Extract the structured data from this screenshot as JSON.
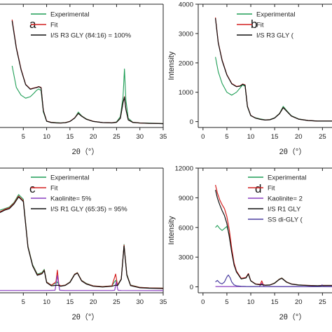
{
  "colors": {
    "experimental": "#1f9e56",
    "fit": "#d42020",
    "component": "#111111",
    "kaolinite": "#8a3fc0",
    "ss": "#4b3fa0",
    "axis": "#222222"
  },
  "chart_data": [
    {
      "id": "a",
      "type": "line",
      "panel_label": "a",
      "xlabel": "2θ（°）",
      "ylabel": "",
      "xlim": [
        0,
        35
      ],
      "ylim": [
        0,
        4000
      ],
      "xticks": [
        "5",
        "10",
        "15",
        "20",
        "25",
        "30",
        "35"
      ],
      "xtick_values": [
        5,
        10,
        15,
        20,
        25,
        30,
        35
      ],
      "yticks": [],
      "legend": [
        "Experimental",
        "Fit",
        "I/S R3 GLY (84:16) = 100%"
      ],
      "series": [
        {
          "name": "Experimental",
          "x": [
            2.6,
            3.5,
            4.5,
            5.5,
            6.5,
            7.2,
            7.8,
            8.3,
            8.8,
            9.3,
            10,
            11,
            12,
            13,
            14,
            15,
            16,
            16.8,
            17.5,
            18.5,
            20,
            22,
            24,
            25,
            25.8,
            26.4,
            26.7,
            27,
            27.5,
            28.5,
            30,
            32,
            34,
            35
          ],
          "y": [
            2000,
            1300,
            1050,
            950,
            1000,
            1100,
            1200,
            1250,
            1200,
            500,
            200,
            170,
            160,
            150,
            160,
            200,
            300,
            500,
            380,
            280,
            200,
            160,
            150,
            180,
            350,
            1000,
            1900,
            900,
            300,
            170,
            150,
            140,
            135,
            130
          ]
        },
        {
          "name": "Fit",
          "x": [
            2.6,
            3.5,
            4.5,
            5.5,
            6.5,
            7.2,
            7.8,
            8.3,
            8.8,
            9.3,
            10,
            11,
            12,
            13,
            14,
            15,
            16,
            16.8,
            17.5,
            18.5,
            20,
            22,
            24,
            25,
            25.8,
            26.4,
            26.7,
            27,
            27.5,
            28.5,
            30,
            32,
            34,
            35
          ],
          "y": [
            3500,
            2600,
            1900,
            1400,
            1250,
            1280,
            1300,
            1330,
            1300,
            550,
            210,
            165,
            150,
            145,
            155,
            200,
            310,
            460,
            370,
            270,
            200,
            160,
            150,
            170,
            300,
            820,
            1000,
            600,
            250,
            165,
            145,
            135,
            130,
            125
          ]
        },
        {
          "name": "I/S R3 GLY (84:16) = 100%",
          "x": [
            2.6,
            3.5,
            4.5,
            5.5,
            6.5,
            7.2,
            7.8,
            8.3,
            8.8,
            9.3,
            10,
            11,
            12,
            13,
            14,
            15,
            16,
            16.8,
            17.5,
            18.5,
            20,
            22,
            24,
            25,
            25.8,
            26.4,
            26.7,
            27,
            27.5,
            28.5,
            30,
            32,
            34,
            35
          ],
          "y": [
            3460,
            2570,
            1880,
            1390,
            1240,
            1270,
            1290,
            1320,
            1290,
            540,
            205,
            160,
            148,
            143,
            152,
            196,
            305,
            455,
            365,
            265,
            196,
            158,
            148,
            168,
            295,
            810,
            985,
            590,
            245,
            162,
            143,
            133,
            128,
            123
          ]
        }
      ]
    },
    {
      "id": "b",
      "type": "line",
      "panel_label": "b",
      "xlabel": "2θ（°）",
      "ylabel": "Intensity",
      "xlim": [
        -1,
        27
      ],
      "ylim": [
        -200,
        4000
      ],
      "xticks": [
        "0",
        "5",
        "10",
        "15",
        "20",
        "25"
      ],
      "xtick_values": [
        0,
        5,
        10,
        15,
        20,
        25
      ],
      "yticks": [
        "0",
        "1000",
        "2000",
        "3000",
        "4000"
      ],
      "ytick_values": [
        0,
        1000,
        2000,
        3000,
        4000
      ],
      "legend": [
        "Experimental",
        "Fit",
        "I/S R3 GLY ("
      ],
      "series": [
        {
          "name": "Experimental",
          "x": [
            2.6,
            3.2,
            4,
            5,
            6,
            7,
            7.8,
            8.3,
            8.8,
            9.3,
            10,
            11,
            12,
            13,
            14,
            15,
            16,
            16.8,
            17.5,
            18.5,
            20,
            22,
            24,
            25,
            26,
            27
          ],
          "y": [
            2200,
            1700,
            1300,
            1000,
            900,
            1000,
            1150,
            1250,
            1200,
            500,
            200,
            130,
            90,
            60,
            70,
            130,
            280,
            520,
            380,
            200,
            90,
            40,
            20,
            20,
            20,
            20
          ]
        },
        {
          "name": "Fit",
          "x": [
            2.6,
            3.2,
            4,
            5,
            6,
            7,
            7.8,
            8.3,
            8.8,
            9.3,
            10,
            11,
            12,
            13,
            14,
            15,
            16,
            16.8,
            17.5,
            18.5,
            20,
            22,
            24,
            25,
            26,
            27
          ],
          "y": [
            3550,
            2700,
            2100,
            1600,
            1300,
            1200,
            1220,
            1280,
            1250,
            520,
            210,
            120,
            80,
            55,
            65,
            125,
            270,
            480,
            360,
            190,
            85,
            38,
            18,
            18,
            18,
            18
          ]
        },
        {
          "name": "I/S R3 GLY (",
          "x": [
            2.6,
            3.2,
            4,
            5,
            6,
            7,
            7.8,
            8.3,
            8.8,
            9.3,
            10,
            11,
            12,
            13,
            14,
            15,
            16,
            16.8,
            17.5,
            18.5,
            20,
            22,
            24,
            25,
            26,
            27
          ],
          "y": [
            3520,
            2680,
            2080,
            1590,
            1290,
            1190,
            1210,
            1270,
            1240,
            515,
            205,
            118,
            78,
            54,
            63,
            122,
            265,
            475,
            355,
            188,
            84,
            37,
            17,
            17,
            17,
            17
          ]
        }
      ]
    },
    {
      "id": "c",
      "type": "line",
      "panel_label": "c",
      "xlabel": "2θ（°）",
      "ylabel": "",
      "xlim": [
        0,
        35
      ],
      "ylim": [
        0,
        8000
      ],
      "xticks": [
        "5",
        "10",
        "15",
        "20",
        "25",
        "30",
        "35"
      ],
      "xtick_values": [
        5,
        10,
        15,
        20,
        25,
        30,
        35
      ],
      "yticks": [],
      "legend": [
        "Experimental",
        "Fit",
        "Kaolinite= 5%",
        "I/S R1 GLY (65:35) = 95%"
      ],
      "series": [
        {
          "name": "Experimental",
          "x": [
            0,
            1,
            2,
            3,
            4,
            5,
            6,
            7,
            8,
            9,
            9.5,
            10,
            11,
            12,
            12.3,
            12.6,
            13,
            14,
            15,
            16,
            16.6,
            17.5,
            18.5,
            20,
            22,
            24,
            24.8,
            25.2,
            26,
            26.6,
            27.2,
            28,
            30,
            32,
            35
          ],
          "y": [
            5300,
            5400,
            5500,
            5800,
            6300,
            6000,
            3000,
            1800,
            1200,
            1300,
            1500,
            700,
            500,
            600,
            700,
            500,
            450,
            500,
            700,
            1200,
            1300,
            800,
            600,
            450,
            400,
            450,
            800,
            500,
            900,
            3100,
            1200,
            500,
            350,
            320,
            300
          ]
        },
        {
          "name": "Fit",
          "x": [
            0,
            1,
            2,
            3,
            4,
            5,
            6,
            7,
            8,
            9,
            9.5,
            10,
            11,
            12,
            12.3,
            12.6,
            13,
            14,
            15,
            16,
            16.6,
            17.5,
            18.5,
            20,
            22,
            24,
            24.8,
            25.2,
            26,
            26.6,
            27.2,
            28,
            30,
            32,
            35
          ],
          "y": [
            5200,
            5350,
            5450,
            5750,
            6200,
            5900,
            2950,
            1750,
            1150,
            1250,
            1450,
            680,
            480,
            700,
            1450,
            550,
            440,
            490,
            680,
            1180,
            1280,
            780,
            580,
            440,
            390,
            440,
            1200,
            480,
            880,
            3050,
            1150,
            480,
            340,
            310,
            290
          ]
        },
        {
          "name": "Kaolinite= 5%",
          "x": [
            0,
            10,
            11.8,
            12.3,
            12.8,
            14,
            24,
            24.6,
            24.9,
            25.3,
            26,
            35
          ],
          "y": [
            150,
            150,
            160,
            1100,
            160,
            150,
            150,
            160,
            700,
            160,
            150,
            140
          ]
        },
        {
          "name": "I/S R1 GLY (65:35) = 95%",
          "x": [
            0,
            1,
            2,
            3,
            4,
            5,
            6,
            7,
            8,
            9,
            9.5,
            10,
            11,
            12,
            12.3,
            12.6,
            13,
            14,
            15,
            16,
            16.6,
            17.5,
            18.5,
            20,
            22,
            24,
            24.8,
            25.2,
            26,
            26.6,
            27.2,
            28,
            30,
            32,
            35
          ],
          "y": [
            5150,
            5300,
            5400,
            5700,
            6150,
            5850,
            2920,
            1720,
            1120,
            1220,
            1420,
            650,
            450,
            470,
            480,
            470,
            420,
            470,
            660,
            1160,
            1260,
            760,
            560,
            420,
            370,
            420,
            490,
            460,
            860,
            3000,
            1120,
            460,
            320,
            290,
            270
          ]
        }
      ]
    },
    {
      "id": "d",
      "type": "line",
      "panel_label": "d",
      "xlabel": "2θ（°）",
      "ylabel": "Intensity",
      "xlim": [
        -1,
        27
      ],
      "ylim": [
        -600,
        12000
      ],
      "xticks": [
        "0",
        "5",
        "10",
        "15",
        "20",
        "25"
      ],
      "xtick_values": [
        0,
        5,
        10,
        15,
        20,
        25
      ],
      "yticks": [
        "0",
        "3000",
        "6000",
        "9000",
        "12000"
      ],
      "ytick_values": [
        0,
        3000,
        6000,
        9000,
        12000
      ],
      "legend": [
        "Experimental",
        "Fit",
        "Kaolinite= 2",
        "I/S R1 GLY",
        "SS di-GLY ("
      ],
      "series": [
        {
          "name": "Experimental",
          "x": [
            2.6,
            3,
            3.5,
            4,
            4.5,
            5,
            5.5,
            6,
            6.5,
            7,
            8,
            9,
            9.5,
            10,
            11,
            12,
            12.3,
            12.6,
            13,
            14,
            15,
            16,
            16.5,
            17.5,
            18.5,
            20,
            22,
            24,
            25,
            26,
            27
          ],
          "y": [
            6000,
            6200,
            5900,
            5700,
            5900,
            6100,
            5300,
            3800,
            2300,
            1500,
            800,
            900,
            1300,
            600,
            300,
            200,
            300,
            200,
            180,
            200,
            400,
            800,
            900,
            500,
            300,
            200,
            150,
            120,
            150,
            150,
            150
          ]
        },
        {
          "name": "Fit",
          "x": [
            2.6,
            3,
            3.5,
            4,
            4.5,
            5,
            5.5,
            6,
            6.5,
            7,
            8,
            9,
            9.5,
            10,
            11,
            12,
            12.3,
            12.6,
            13,
            14,
            15,
            16,
            16.5,
            17.5,
            18.5,
            20,
            22,
            24,
            25,
            26,
            27
          ],
          "y": [
            10300,
            9500,
            8800,
            8300,
            7900,
            7100,
            5800,
            3900,
            2400,
            1600,
            850,
            950,
            1350,
            620,
            290,
            250,
            600,
            220,
            170,
            190,
            380,
            780,
            880,
            480,
            290,
            190,
            140,
            110,
            140,
            140,
            140
          ]
        },
        {
          "name": "Kaolinite= 2",
          "x": [
            2.6,
            10,
            11.8,
            12.3,
            12.8,
            14,
            24,
            24.6,
            24.9,
            25.3,
            26,
            27
          ],
          "y": [
            30,
            30,
            40,
            350,
            40,
            30,
            30,
            40,
            200,
            40,
            30,
            30
          ]
        },
        {
          "name": "I/S R1 GLY",
          "x": [
            2.6,
            3,
            3.5,
            4,
            4.5,
            5,
            5.5,
            6,
            6.5,
            7,
            8,
            9,
            9.5,
            10,
            11,
            12,
            12.3,
            12.6,
            13,
            14,
            15,
            16,
            16.5,
            17.5,
            18.5,
            20,
            22,
            24,
            25,
            26,
            27
          ],
          "y": [
            9800,
            9000,
            8300,
            7700,
            7200,
            6400,
            5100,
            3500,
            2200,
            1500,
            800,
            900,
            1300,
            600,
            270,
            210,
            220,
            200,
            160,
            180,
            360,
            760,
            860,
            460,
            280,
            180,
            130,
            100,
            120,
            130,
            130
          ]
        },
        {
          "name": "SS di-GLY (",
          "x": [
            2.6,
            3,
            3.5,
            4,
            4.5,
            5,
            5.3,
            5.7,
            6,
            6.5,
            7,
            8,
            9,
            10,
            12,
            15,
            20,
            27
          ],
          "y": [
            500,
            650,
            400,
            300,
            500,
            1000,
            1200,
            900,
            500,
            200,
            100,
            60,
            40,
            30,
            20,
            20,
            20,
            20
          ]
        }
      ]
    }
  ]
}
